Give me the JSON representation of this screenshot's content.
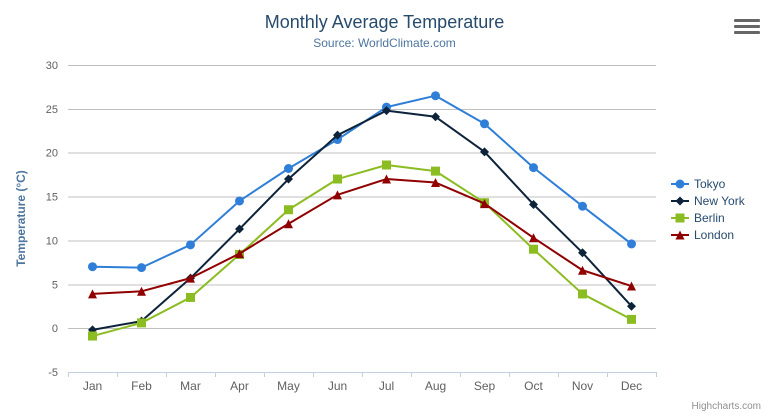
{
  "credits": "Highcharts.com",
  "export_menu": {
    "icon": "hamburger-icon"
  },
  "chart_data": {
    "type": "line",
    "title": "Monthly Average Temperature",
    "subtitle": "Source: WorldClimate.com",
    "categories": [
      "Jan",
      "Feb",
      "Mar",
      "Apr",
      "May",
      "Jun",
      "Jul",
      "Aug",
      "Sep",
      "Oct",
      "Nov",
      "Dec"
    ],
    "series": [
      {
        "name": "Tokyo",
        "color": "#2f7ed8",
        "marker": "circle",
        "values": [
          7.0,
          6.9,
          9.5,
          14.5,
          18.2,
          21.5,
          25.2,
          26.5,
          23.3,
          18.3,
          13.9,
          9.6
        ]
      },
      {
        "name": "New York",
        "color": "#0d233a",
        "marker": "diamond",
        "values": [
          -0.2,
          0.8,
          5.7,
          11.3,
          17.0,
          22.0,
          24.8,
          24.1,
          20.1,
          14.1,
          8.6,
          2.5
        ]
      },
      {
        "name": "Berlin",
        "color": "#8bbc21",
        "marker": "square",
        "values": [
          -0.9,
          0.6,
          3.5,
          8.4,
          13.5,
          17.0,
          18.6,
          17.9,
          14.3,
          9.0,
          3.9,
          1.0
        ]
      },
      {
        "name": "London",
        "color": "#910000",
        "marker": "triangle",
        "values": [
          3.9,
          4.2,
          5.7,
          8.5,
          11.9,
          15.2,
          17.0,
          16.6,
          14.2,
          10.3,
          6.6,
          4.8
        ]
      }
    ],
    "xlabel": "",
    "ylabel": "Temperature (°C)",
    "ylim": [
      -5,
      30
    ],
    "ytick_step": 5,
    "yticks": [
      -5,
      0,
      5,
      10,
      15,
      20,
      25,
      30
    ],
    "grid": "horizontal-only",
    "legend_position": "right"
  },
  "colors": {
    "title": "#274b6d",
    "subtitle": "#4d759e",
    "axis_title": "#4d759e",
    "tick_label": "#606060",
    "gridline": "#c0c0c0",
    "axis_line": "#c0d0e0",
    "legend_text": "#274b6d",
    "credits_text": "#909090",
    "menu_icon": "#666666",
    "background": "#ffffff"
  }
}
